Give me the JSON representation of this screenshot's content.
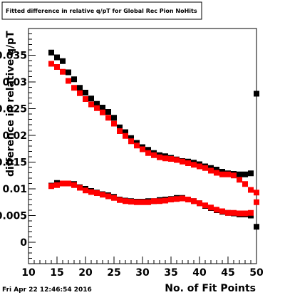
{
  "chart_data": {
    "type": "scatter",
    "title": "Fitted difference in relative q/pT for Global Rec Pion NoHits",
    "xlabel": "No. of Fit Points",
    "ylabel": "difference in relative q/pT",
    "xlim": [
      10,
      50
    ],
    "ylim": [
      -0.004,
      0.04
    ],
    "x_ticks": [
      "10",
      "15",
      "20",
      "25",
      "30",
      "35",
      "40",
      "45",
      "50"
    ],
    "y_ticks": [
      "0",
      "0.005",
      "0.01",
      "0.015",
      "0.02",
      "0.025",
      "0.03",
      "0.035"
    ],
    "grid": false,
    "timestamp": "Fri Apr 22 12:46:54 2016",
    "series": [
      {
        "color": "#000000",
        "x": [
          14,
          15,
          16,
          17,
          18,
          19,
          20,
          21,
          22,
          23,
          24,
          25,
          26,
          27,
          28,
          29,
          30,
          31,
          32,
          33,
          34,
          35,
          36,
          37,
          38,
          39,
          40,
          41,
          42,
          43,
          44,
          45,
          46,
          47,
          48,
          49,
          50
        ],
        "y": [
          0.0355,
          0.0346,
          0.0339,
          0.0318,
          0.0305,
          0.0289,
          0.028,
          0.0269,
          0.0259,
          0.0252,
          0.0244,
          0.0233,
          0.0215,
          0.0206,
          0.0195,
          0.0186,
          0.0178,
          0.0173,
          0.0167,
          0.0163,
          0.0161,
          0.0158,
          0.0155,
          0.0152,
          0.0151,
          0.0149,
          0.0146,
          0.0142,
          0.0139,
          0.0136,
          0.0132,
          0.0129,
          0.0128,
          0.0127,
          0.0127,
          0.0129,
          0.0278
        ]
      },
      {
        "color": "#000000",
        "x": [
          14,
          15,
          16,
          17,
          18,
          19,
          20,
          21,
          22,
          23,
          24,
          25,
          26,
          27,
          28,
          29,
          30,
          31,
          32,
          33,
          34,
          35,
          36,
          37,
          38,
          39,
          40,
          41,
          42,
          43,
          44,
          45,
          46,
          47,
          48,
          49,
          50
        ],
        "y": [
          0.0106,
          0.0111,
          0.011,
          0.011,
          0.0109,
          0.0103,
          0.01,
          0.0096,
          0.0093,
          0.009,
          0.0088,
          0.0085,
          0.008,
          0.0078,
          0.0077,
          0.0076,
          0.0076,
          0.0077,
          0.0077,
          0.0079,
          0.008,
          0.0081,
          0.0083,
          0.0083,
          0.008,
          0.0077,
          0.0073,
          0.0068,
          0.0064,
          0.006,
          0.0057,
          0.0055,
          0.0054,
          0.0052,
          0.0052,
          0.005,
          0.0029
        ]
      },
      {
        "color": "#ff0000",
        "x": [
          14,
          15,
          16,
          17,
          18,
          19,
          20,
          21,
          22,
          23,
          24,
          25,
          26,
          27,
          28,
          29,
          30,
          31,
          32,
          33,
          34,
          35,
          36,
          37,
          38,
          39,
          40,
          41,
          42,
          43,
          44,
          45,
          46,
          47,
          48,
          49,
          50
        ],
        "y": [
          0.0334,
          0.0328,
          0.0319,
          0.0302,
          0.0289,
          0.0279,
          0.0268,
          0.0258,
          0.0251,
          0.0243,
          0.0233,
          0.0222,
          0.0208,
          0.0199,
          0.0189,
          0.0181,
          0.0174,
          0.0167,
          0.0163,
          0.0159,
          0.0157,
          0.0156,
          0.0154,
          0.0151,
          0.0148,
          0.0145,
          0.0142,
          0.0139,
          0.0134,
          0.013,
          0.0127,
          0.0127,
          0.0125,
          0.0117,
          0.0109,
          0.0098,
          0.0093
        ]
      },
      {
        "color": "#ff0000",
        "x": [
          14,
          15,
          16,
          17,
          18,
          19,
          20,
          21,
          22,
          23,
          24,
          25,
          26,
          27,
          28,
          29,
          30,
          31,
          32,
          33,
          34,
          35,
          36,
          37,
          38,
          39,
          40,
          41,
          42,
          43,
          44,
          45,
          46,
          47,
          48,
          49,
          50
        ],
        "y": [
          0.0105,
          0.0107,
          0.011,
          0.011,
          0.0107,
          0.0102,
          0.0097,
          0.0094,
          0.0092,
          0.0089,
          0.0086,
          0.0083,
          0.0079,
          0.0077,
          0.0076,
          0.0075,
          0.0075,
          0.0075,
          0.0077,
          0.0077,
          0.0078,
          0.008,
          0.0081,
          0.0082,
          0.008,
          0.0077,
          0.0073,
          0.0069,
          0.0065,
          0.0061,
          0.0058,
          0.0055,
          0.0055,
          0.0054,
          0.0054,
          0.0055,
          0.0075
        ]
      }
    ]
  }
}
